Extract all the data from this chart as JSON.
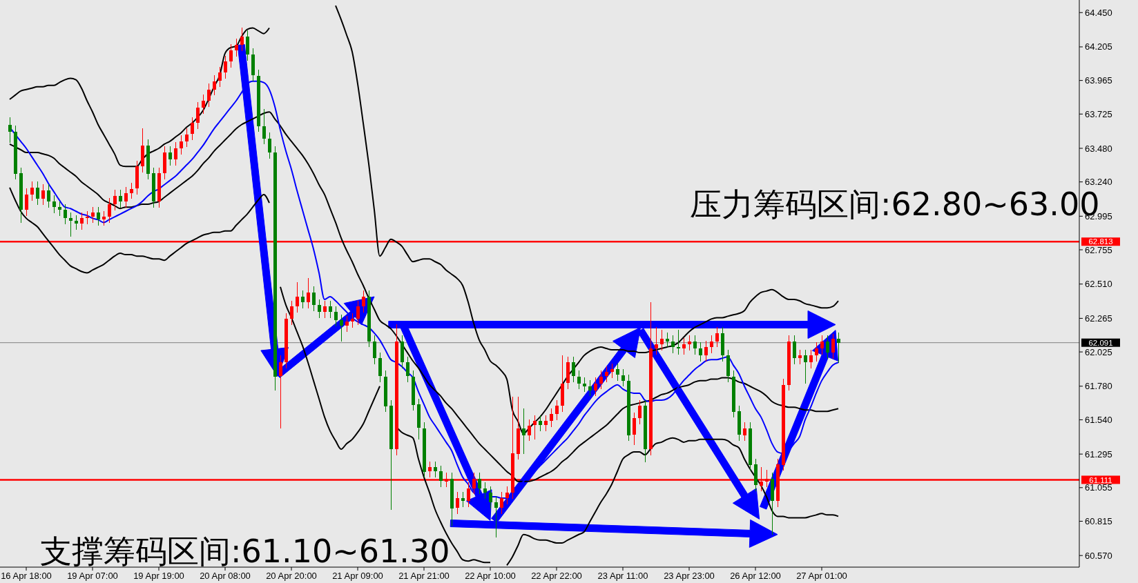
{
  "chart_data": {
    "type": "candlestick",
    "categories": [
      null,
      null,
      null,
      "16 Apr 18:00",
      null,
      null,
      null,
      null,
      null,
      null,
      null,
      null,
      null,
      null,
      null,
      "19 Apr 07:00",
      null,
      null,
      null,
      null,
      null,
      null,
      null,
      null,
      null,
      null,
      null,
      "19 Apr 19:00",
      null,
      null,
      null,
      null,
      null,
      null,
      null,
      null,
      null,
      null,
      null,
      "20 Apr 08:00",
      null,
      null,
      null,
      null,
      null,
      null,
      null,
      null,
      null,
      null,
      null,
      "20 Apr 20:00",
      null,
      null,
      null,
      null,
      null,
      null,
      null,
      null,
      null,
      null,
      null,
      "21 Apr 09:00",
      null,
      null,
      null,
      null,
      null,
      null,
      null,
      null,
      null,
      null,
      null,
      "21 Apr 21:00",
      null,
      null,
      null,
      null,
      null,
      null,
      null,
      null,
      null,
      null,
      null,
      "22 Apr 10:00",
      null,
      null,
      null,
      null,
      null,
      null,
      null,
      null,
      null,
      null,
      null,
      "22 Apr 22:00",
      null,
      null,
      null,
      null,
      null,
      null,
      null,
      null,
      null,
      null,
      null,
      "23 Apr 11:00",
      null,
      null,
      null,
      null,
      null,
      null,
      null,
      null,
      null,
      null,
      null,
      "23 Apr 23:00",
      null,
      null,
      null,
      null,
      null,
      null,
      null,
      null,
      null,
      null,
      null,
      "26 Apr 12:00",
      null,
      null,
      null,
      null,
      null,
      null,
      null,
      null,
      null,
      null,
      null,
      "27 Apr 01:00",
      null,
      null,
      null
    ],
    "ylim": [
      60.487,
      64.54
    ],
    "yticks": [
      {
        "value": 64.45,
        "label": "64.450"
      },
      {
        "value": 64.205,
        "label": "64.205"
      },
      {
        "value": 63.965,
        "label": "63.965"
      },
      {
        "value": 63.725,
        "label": "63.725"
      },
      {
        "value": 63.48,
        "label": "63.480"
      },
      {
        "value": 63.24,
        "label": "63.240"
      },
      {
        "value": 62.995,
        "label": "62.995"
      },
      {
        "value": 62.755,
        "label": "62.755"
      },
      {
        "value": 62.51,
        "label": "62.510"
      },
      {
        "value": 62.265,
        "label": "62.265"
      },
      {
        "value": 62.025,
        "label": "62.025"
      },
      {
        "value": 61.78,
        "label": "61.780"
      },
      {
        "value": 61.54,
        "label": "61.540"
      },
      {
        "value": 61.295,
        "label": "61.295"
      },
      {
        "value": 61.055,
        "label": "61.055"
      },
      {
        "value": 60.815,
        "label": "60.815"
      },
      {
        "value": 60.57,
        "label": "60.570"
      }
    ],
    "colors": [
      "#008000",
      "#008000",
      "#008000",
      "#ff0000",
      "#ff0000",
      "#008000",
      "#ff0000",
      "#008000",
      "#008000",
      "#008000",
      "#008000",
      "#008000",
      "#008000",
      "#ff0000",
      "#ff0000",
      "#ff0000",
      "#008000",
      "#ff0000",
      "#ff0000",
      "#ff0000",
      "#008000",
      "#ff0000",
      "#ff0000",
      "#ff0000",
      "#ff0000",
      "#008000",
      "#008000",
      "#ff0000",
      "#ff0000",
      "#008000",
      "#ff0000",
      "#ff0000",
      "#ff0000",
      "#ff0000",
      "#ff0000",
      "#ff0000",
      "#ff0000",
      "#ff0000",
      "#ff0000",
      "#ff0000",
      "#ff0000",
      "#ff0000",
      "#ff0000",
      "#008000",
      "#008000",
      "#008000",
      "#008000",
      "#008000",
      "#008000",
      "#ff0000",
      "#ff0000",
      "#ff0000",
      "#ff0000",
      "#008000",
      "#ff0000",
      "#008000",
      "#008000",
      "#ff0000",
      "#008000",
      "#008000",
      "#008000",
      "#ff0000",
      "#ff0000",
      "#ff0000",
      "#ff0000",
      "#008000",
      "#008000",
      "#008000",
      "#008000",
      "#008000",
      "#ff0000",
      "#008000",
      "#008000",
      "#008000",
      "#008000",
      "#008000",
      "#ff0000",
      "#008000",
      "#008000",
      "#ff0000",
      "#008000",
      "#ff0000",
      "#008000",
      "#ff0000",
      "#ff0000",
      "#008000",
      "#008000",
      "#008000",
      "#008000",
      "#ff0000",
      "#ff0000",
      "#ff0000",
      "#ff0000",
      "#008000",
      "#ff0000",
      "#ff0000",
      "#008000",
      "#ff0000",
      "#ff0000",
      "#ff0000",
      "#ff0000",
      "#ff0000",
      "#008000",
      "#008000",
      "#008000",
      "#008000",
      "#ff0000",
      "#ff0000",
      "#ff0000",
      "#ff0000",
      "#008000",
      "#008000",
      "#008000",
      "#ff0000",
      "#ff0000",
      "#008000",
      "#ff0000",
      "#ff0000",
      "#ff0000",
      "#008000",
      "#008000",
      "#008000",
      "#ff0000",
      "#ff0000",
      "#008000",
      "#008000",
      "#ff0000",
      "#ff0000",
      "#ff0000",
      "#008000",
      "#008000",
      "#008000",
      "#008000",
      "#ff0000",
      "#008000",
      "#008000",
      "#ff0000",
      "#ff0000",
      "#008000",
      "#ff0000",
      "#ff0000",
      "#ff0000",
      "#008000",
      "#ff0000",
      "#008000",
      "#ff0000",
      "#ff0000",
      "#ff0000",
      "#008000",
      "#ff0000",
      "#008000"
    ],
    "ohlc": [
      [
        63.65,
        63.7,
        63.52,
        63.6
      ],
      [
        63.6,
        63.64,
        63.26,
        63.3
      ],
      [
        63.3,
        63.34,
        62.95,
        63.04
      ],
      [
        63.04,
        63.19,
        63.0,
        63.15
      ],
      [
        63.15,
        63.24,
        63.11,
        63.2
      ],
      [
        63.2,
        63.24,
        63.08,
        63.12
      ],
      [
        63.12,
        63.22,
        63.08,
        63.18
      ],
      [
        63.18,
        63.22,
        63.06,
        63.1
      ],
      [
        63.1,
        63.14,
        63.02,
        63.06
      ],
      [
        63.06,
        63.1,
        63.0,
        63.04
      ],
      [
        63.04,
        63.08,
        62.94,
        62.98
      ],
      [
        62.98,
        63.02,
        62.85,
        62.96
      ],
      [
        62.96,
        63.0,
        62.9,
        62.94
      ],
      [
        62.94,
        63.02,
        62.9,
        62.98
      ],
      [
        62.98,
        63.03,
        62.94,
        62.99
      ],
      [
        62.99,
        63.06,
        62.95,
        63.02
      ],
      [
        63.02,
        63.06,
        62.93,
        62.97
      ],
      [
        62.97,
        63.03,
        62.93,
        62.99
      ],
      [
        62.99,
        63.12,
        62.95,
        63.08
      ],
      [
        63.08,
        63.18,
        63.04,
        63.14
      ],
      [
        63.14,
        63.18,
        63.06,
        63.1
      ],
      [
        63.1,
        63.2,
        63.06,
        63.16
      ],
      [
        63.16,
        63.23,
        63.12,
        63.19
      ],
      [
        63.19,
        63.39,
        63.15,
        63.35
      ],
      [
        63.35,
        63.62,
        63.31,
        63.5
      ],
      [
        63.5,
        63.54,
        63.26,
        63.3
      ],
      [
        63.3,
        63.34,
        63.06,
        63.1
      ],
      [
        63.1,
        63.34,
        63.06,
        63.3
      ],
      [
        63.3,
        63.49,
        63.26,
        63.45
      ],
      [
        63.45,
        63.49,
        63.36,
        63.4
      ],
      [
        63.4,
        63.52,
        63.36,
        63.48
      ],
      [
        63.48,
        63.57,
        63.44,
        63.53
      ],
      [
        63.53,
        63.62,
        63.49,
        63.58
      ],
      [
        63.58,
        63.7,
        63.54,
        63.66
      ],
      [
        63.66,
        63.81,
        63.62,
        63.77
      ],
      [
        63.77,
        63.86,
        63.73,
        63.82
      ],
      [
        63.82,
        63.94,
        63.78,
        63.9
      ],
      [
        63.9,
        64.0,
        63.86,
        63.96
      ],
      [
        63.96,
        64.06,
        63.92,
        64.02
      ],
      [
        64.02,
        64.14,
        63.98,
        64.1
      ],
      [
        64.1,
        64.22,
        64.06,
        64.18
      ],
      [
        64.18,
        64.26,
        64.14,
        64.22
      ],
      [
        64.22,
        64.34,
        64.18,
        64.28
      ],
      [
        64.28,
        64.32,
        64.11,
        64.15
      ],
      [
        64.15,
        64.19,
        63.96,
        64.0
      ],
      [
        64.0,
        64.04,
        63.6,
        63.64
      ],
      [
        63.64,
        63.76,
        63.51,
        63.55
      ],
      [
        63.55,
        63.59,
        63.41,
        63.45
      ],
      [
        63.45,
        63.49,
        61.75,
        61.85
      ],
      [
        61.85,
        62.0,
        61.48,
        61.95
      ],
      [
        61.95,
        62.3,
        61.91,
        62.26
      ],
      [
        62.26,
        62.39,
        62.22,
        62.35
      ],
      [
        62.35,
        62.52,
        62.31,
        62.42
      ],
      [
        62.42,
        62.46,
        62.34,
        62.38
      ],
      [
        62.38,
        62.55,
        62.34,
        62.45
      ],
      [
        62.45,
        62.49,
        62.32,
        62.36
      ],
      [
        62.36,
        62.4,
        62.27,
        62.31
      ],
      [
        62.31,
        62.39,
        62.27,
        62.35
      ],
      [
        62.35,
        62.39,
        62.27,
        62.31
      ],
      [
        62.31,
        62.35,
        62.21,
        62.25
      ],
      [
        62.25,
        62.29,
        62.1,
        62.21
      ],
      [
        62.21,
        62.28,
        62.17,
        62.24
      ],
      [
        62.24,
        62.3,
        62.2,
        62.26
      ],
      [
        62.26,
        62.39,
        62.22,
        62.35
      ],
      [
        62.35,
        62.46,
        62.31,
        62.42
      ],
      [
        62.42,
        62.46,
        62.06,
        62.1
      ],
      [
        62.1,
        62.14,
        61.94,
        61.98
      ],
      [
        61.98,
        62.02,
        61.81,
        61.85
      ],
      [
        61.85,
        61.89,
        61.6,
        61.64
      ],
      [
        61.64,
        61.68,
        60.9,
        61.33
      ],
      [
        61.33,
        62.22,
        61.29,
        62.1
      ],
      [
        62.1,
        62.14,
        61.91,
        61.95
      ],
      [
        61.95,
        61.99,
        61.81,
        61.85
      ],
      [
        61.85,
        61.89,
        61.61,
        61.65
      ],
      [
        61.65,
        61.69,
        61.4,
        61.48
      ],
      [
        61.48,
        61.52,
        61.13,
        61.17
      ],
      [
        61.17,
        61.24,
        61.13,
        61.2
      ],
      [
        61.2,
        61.24,
        61.13,
        61.17
      ],
      [
        61.17,
        61.21,
        61.06,
        61.1
      ],
      [
        61.1,
        61.16,
        61.06,
        61.12
      ],
      [
        61.12,
        61.16,
        60.78,
        60.91
      ],
      [
        60.91,
        61.02,
        60.87,
        60.98
      ],
      [
        60.98,
        61.02,
        60.92,
        60.96
      ],
      [
        60.96,
        61.09,
        60.92,
        61.05
      ],
      [
        61.05,
        61.16,
        61.01,
        61.12
      ],
      [
        61.12,
        61.16,
        61.01,
        61.05
      ],
      [
        61.05,
        61.09,
        60.98,
        61.02
      ],
      [
        61.02,
        61.06,
        60.91,
        60.95
      ],
      [
        60.95,
        60.99,
        60.7,
        60.91
      ],
      [
        60.91,
        61.02,
        60.87,
        60.98
      ],
      [
        60.98,
        61.06,
        60.94,
        61.02
      ],
      [
        61.02,
        61.7,
        60.98,
        61.3
      ],
      [
        61.3,
        61.7,
        61.26,
        61.48
      ],
      [
        61.48,
        61.62,
        61.3,
        61.43
      ],
      [
        61.43,
        61.54,
        61.39,
        61.5
      ],
      [
        61.5,
        61.57,
        61.4,
        61.53
      ],
      [
        61.53,
        61.57,
        61.46,
        61.5
      ],
      [
        61.5,
        61.57,
        61.46,
        61.53
      ],
      [
        61.53,
        61.62,
        61.49,
        61.58
      ],
      [
        61.58,
        61.68,
        61.54,
        61.64
      ],
      [
        61.64,
        62.0,
        61.6,
        61.8
      ],
      [
        61.8,
        61.99,
        61.76,
        61.95
      ],
      [
        61.95,
        61.99,
        61.81,
        61.85
      ],
      [
        61.85,
        61.89,
        61.76,
        61.8
      ],
      [
        61.8,
        61.84,
        61.74,
        61.78
      ],
      [
        61.78,
        61.82,
        61.71,
        61.75
      ],
      [
        61.75,
        61.84,
        61.71,
        61.8
      ],
      [
        61.8,
        61.89,
        61.76,
        61.85
      ],
      [
        61.85,
        61.92,
        61.81,
        61.88
      ],
      [
        61.88,
        61.94,
        61.84,
        61.9
      ],
      [
        61.9,
        61.94,
        61.82,
        61.86
      ],
      [
        61.86,
        61.9,
        61.78,
        61.82
      ],
      [
        61.82,
        61.86,
        61.39,
        61.43
      ],
      [
        61.43,
        61.59,
        61.36,
        61.55
      ],
      [
        61.55,
        61.68,
        61.51,
        61.64
      ],
      [
        61.64,
        61.68,
        61.24,
        61.33
      ],
      [
        61.33,
        62.38,
        61.29,
        62.05
      ],
      [
        62.05,
        62.2,
        62.01,
        62.08
      ],
      [
        62.08,
        62.18,
        62.04,
        62.12
      ],
      [
        62.12,
        62.16,
        62.06,
        62.1
      ],
      [
        62.1,
        62.14,
        62.02,
        62.06
      ],
      [
        62.06,
        62.18,
        62.01,
        62.05
      ],
      [
        62.05,
        62.12,
        62.01,
        62.08
      ],
      [
        62.08,
        62.14,
        62.04,
        62.1
      ],
      [
        62.1,
        62.14,
        62.01,
        62.05
      ],
      [
        62.05,
        62.09,
        61.96,
        62.0
      ],
      [
        62.0,
        62.1,
        61.96,
        62.06
      ],
      [
        62.06,
        62.14,
        62.02,
        62.1
      ],
      [
        62.1,
        62.2,
        62.06,
        62.16
      ],
      [
        62.16,
        62.2,
        61.96,
        62.0
      ],
      [
        62.0,
        62.04,
        61.81,
        61.85
      ],
      [
        61.85,
        61.89,
        61.56,
        61.6
      ],
      [
        61.6,
        61.64,
        61.39,
        61.43
      ],
      [
        61.43,
        61.52,
        61.39,
        61.48
      ],
      [
        61.48,
        61.52,
        61.18,
        61.22
      ],
      [
        61.22,
        61.26,
        61.03,
        61.07
      ],
      [
        61.07,
        61.2,
        61.03,
        61.1
      ],
      [
        61.1,
        61.18,
        61.06,
        61.12
      ],
      [
        61.12,
        61.16,
        60.72,
        60.96
      ],
      [
        60.96,
        61.26,
        60.92,
        61.22
      ],
      [
        61.22,
        61.83,
        61.18,
        61.79
      ],
      [
        61.79,
        62.14,
        61.75,
        62.1
      ],
      [
        62.1,
        62.14,
        61.94,
        61.98
      ],
      [
        61.98,
        62.04,
        61.94,
        62.0
      ],
      [
        62.0,
        62.04,
        61.8,
        61.95
      ],
      [
        61.95,
        62.04,
        61.91,
        62.0
      ],
      [
        62.0,
        62.09,
        61.96,
        62.05
      ],
      [
        62.05,
        62.14,
        62.01,
        62.1
      ],
      [
        62.1,
        62.14,
        61.98,
        62.02
      ],
      [
        62.02,
        62.15,
        61.98,
        62.12
      ],
      [
        62.12,
        62.16,
        61.95,
        62.09
      ]
    ],
    "series": [
      {
        "type": "line",
        "color": "#000000",
        "values": [
          63.83,
          63.86,
          63.89,
          63.9,
          63.91,
          63.92,
          63.92,
          63.93,
          63.93,
          63.95,
          63.97,
          63.98,
          63.97,
          63.91,
          63.82,
          63.74,
          63.65,
          63.58,
          63.51,
          63.44,
          63.36,
          63.35,
          63.35,
          63.35,
          63.4,
          63.44,
          63.46,
          63.48,
          63.51,
          63.53,
          63.56,
          63.59,
          63.63,
          63.66,
          63.7,
          63.75,
          63.83,
          63.92,
          64.0,
          64.16,
          64.2,
          64.21,
          64.28,
          64.33,
          64.34,
          64.32,
          64.3,
          64.34,
          null,
          null,
          null,
          null,
          null,
          null,
          null,
          null,
          null,
          null,
          null,
          64.5,
          64.4,
          64.29,
          64.17,
          63.94,
          63.66,
          63.37,
          63.04,
          62.71,
          62.77,
          62.83,
          62.81,
          62.78,
          62.72,
          62.67,
          62.68,
          62.69,
          62.69,
          62.67,
          62.65,
          62.61,
          62.58,
          62.55,
          62.5,
          62.38,
          62.23,
          62.11,
          62.04,
          61.96,
          61.93,
          61.89,
          61.83,
          61.61,
          61.53,
          61.44,
          61.48,
          61.52,
          61.56,
          61.61,
          61.67,
          61.73,
          61.79,
          61.85,
          61.9,
          61.95,
          62.0,
          62.03,
          62.05,
          62.06,
          62.05,
          62.04,
          62.04,
          62.04,
          62.03,
          62.03,
          62.02,
          62.02,
          62.03,
          62.04,
          62.05,
          62.06,
          62.07,
          62.09,
          62.13,
          62.17,
          62.2,
          62.22,
          62.24,
          62.26,
          62.27,
          62.27,
          62.28,
          62.29,
          62.3,
          62.32,
          62.38,
          62.42,
          62.45,
          62.46,
          62.47,
          62.45,
          62.42,
          62.4,
          62.4,
          62.39,
          62.37,
          62.36,
          62.35,
          62.34,
          62.34,
          62.35,
          62.39
        ]
      },
      {
        "type": "line",
        "color": "#000000",
        "values": [
          63.51,
          63.49,
          63.47,
          63.45,
          63.45,
          63.45,
          63.44,
          63.43,
          63.41,
          63.37,
          63.34,
          63.31,
          63.28,
          63.24,
          63.21,
          63.18,
          63.15,
          63.11,
          63.09,
          63.07,
          63.05,
          63.06,
          63.06,
          63.07,
          63.08,
          63.08,
          63.09,
          63.1,
          63.13,
          63.16,
          63.19,
          63.22,
          63.25,
          63.28,
          63.32,
          63.37,
          63.41,
          63.46,
          63.5,
          63.54,
          63.58,
          63.62,
          63.65,
          63.67,
          63.69,
          63.71,
          63.73,
          63.74,
          63.69,
          63.64,
          63.58,
          63.53,
          63.48,
          63.43,
          63.37,
          63.3,
          63.22,
          63.15,
          63.05,
          62.95,
          62.84,
          62.75,
          62.67,
          62.58,
          62.5,
          62.41,
          62.33,
          62.25,
          62.22,
          62.19,
          62.14,
          62.08,
          62.02,
          61.96,
          61.91,
          61.85,
          61.79,
          61.75,
          61.71,
          61.66,
          61.62,
          61.57,
          61.52,
          61.47,
          61.42,
          61.37,
          61.33,
          61.29,
          61.25,
          61.21,
          61.17,
          61.14,
          61.1,
          61.1,
          61.1,
          61.11,
          61.13,
          61.15,
          61.17,
          61.2,
          61.24,
          61.27,
          61.31,
          61.35,
          61.38,
          61.41,
          61.44,
          61.47,
          61.5,
          61.54,
          61.58,
          61.62,
          61.64,
          61.65,
          61.66,
          61.67,
          61.68,
          61.7,
          61.72,
          61.73,
          61.75,
          61.77,
          61.78,
          61.79,
          61.81,
          61.82,
          61.82,
          61.83,
          61.83,
          61.84,
          61.84,
          61.83,
          61.81,
          61.8,
          61.78,
          61.76,
          61.74,
          61.71,
          61.67,
          61.65,
          61.64,
          61.63,
          61.63,
          61.62,
          61.61,
          61.61,
          61.6,
          61.6,
          61.6,
          61.61,
          61.62
        ]
      },
      {
        "type": "line",
        "color": "#000000",
        "values": [
          63.2,
          63.11,
          63.03,
          62.98,
          62.95,
          62.92,
          62.87,
          62.82,
          62.77,
          62.72,
          62.68,
          62.64,
          62.62,
          62.6,
          62.59,
          62.61,
          62.63,
          62.65,
          62.68,
          62.71,
          62.73,
          62.72,
          62.72,
          62.71,
          62.71,
          62.7,
          62.69,
          62.69,
          62.68,
          62.71,
          62.74,
          62.77,
          62.8,
          62.82,
          62.84,
          62.86,
          62.87,
          62.88,
          62.88,
          62.89,
          62.89,
          62.93,
          62.97,
          63.01,
          63.06,
          63.11,
          63.15,
          63.09,
          null,
          62.49,
          62.36,
          62.27,
          62.17,
          62.07,
          61.95,
          61.82,
          61.69,
          61.56,
          61.46,
          61.39,
          61.33,
          61.37,
          61.4,
          61.45,
          61.51,
          61.6,
          61.69,
          61.78,
          null,
          null,
          61.49,
          61.45,
          61.43,
          61.41,
          61.26,
          61.13,
          61.02,
          60.9,
          60.81,
          60.73,
          60.66,
          60.6,
          60.54,
          60.53,
          60.54,
          60.53,
          60.52,
          60.52,
          null,
          null,
          60.5,
          60.56,
          60.64,
          60.72,
          60.71,
          60.69,
          60.68,
          60.68,
          60.67,
          60.66,
          60.66,
          60.68,
          60.7,
          60.72,
          60.74,
          60.81,
          60.88,
          60.95,
          61.01,
          61.08,
          61.17,
          61.26,
          61.29,
          61.31,
          61.31,
          61.29,
          61.33,
          61.37,
          61.38,
          61.4,
          61.41,
          61.4,
          61.38,
          61.39,
          61.39,
          61.4,
          61.4,
          61.4,
          61.4,
          61.4,
          61.39,
          61.36,
          61.34,
          61.26,
          61.19,
          61.13,
          61.07,
          60.99,
          60.89,
          60.85,
          60.85,
          60.84,
          60.84,
          60.84,
          60.84,
          60.85,
          60.86,
          60.87,
          60.86,
          60.86,
          60.85
        ]
      },
      {
        "type": "line",
        "color": "#0000ff",
        "values": [
          63.63,
          63.58,
          63.53,
          63.48,
          63.42,
          63.36,
          63.3,
          63.23,
          63.17,
          63.11,
          63.06,
          63.05,
          63.03,
          63.01,
          63.0,
          62.98,
          62.97,
          62.95,
          62.97,
          62.99,
          63.01,
          63.03,
          63.05,
          63.07,
          63.1,
          63.14,
          63.17,
          63.19,
          63.22,
          63.25,
          63.28,
          63.32,
          63.36,
          63.4,
          63.45,
          63.5,
          63.56,
          63.62,
          63.67,
          63.72,
          63.77,
          63.82,
          63.88,
          63.94,
          63.96,
          63.96,
          63.95,
          63.9,
          63.78,
          63.61,
          63.46,
          63.33,
          63.18,
          63.04,
          62.9,
          62.76,
          62.59,
          62.4,
          62.42,
          62.39,
          62.35,
          62.31,
          62.27,
          62.24,
          62.22,
          62.2,
          62.16,
          62.11,
          62.04,
          61.97,
          61.95,
          61.92,
          61.88,
          61.84,
          61.74,
          61.65,
          61.56,
          61.5,
          61.44,
          61.38,
          61.32,
          61.22,
          61.13,
          61.08,
          61.02,
          61.01,
          61.0,
          60.99,
          60.99,
          60.98,
          60.98,
          61.02,
          61.06,
          61.1,
          61.14,
          61.17,
          61.21,
          61.25,
          61.29,
          61.33,
          61.37,
          61.41,
          61.46,
          61.51,
          61.57,
          61.62,
          61.67,
          61.71,
          61.74,
          61.77,
          61.79,
          61.76,
          61.74,
          61.73,
          61.73,
          61.68,
          61.67,
          61.68,
          61.68,
          61.69,
          61.72,
          61.77,
          61.82,
          61.86,
          61.9,
          61.93,
          61.96,
          61.97,
          61.97,
          61.98,
          61.99,
          61.93,
          61.87,
          61.78,
          61.7,
          61.62,
          61.56,
          61.47,
          61.37,
          61.31,
          61.3,
          61.32,
          61.37,
          61.42,
          61.54,
          61.63,
          61.73,
          61.82,
          61.88,
          61.93,
          61.95
        ]
      }
    ],
    "ref_lines": [
      {
        "axis": "y",
        "value": 62.813,
        "label": "62.813",
        "color": "#ff0000"
      },
      {
        "axis": "y",
        "value": 61.111,
        "label": "61.111",
        "color": "#ff0000"
      },
      {
        "axis": "y",
        "value": 62.091,
        "label": "62.091",
        "color": "#000000"
      }
    ],
    "annotations": [
      "压力筹码区间:62.80~63.00",
      "支撑筹码区间:61.10~61.30"
    ]
  }
}
